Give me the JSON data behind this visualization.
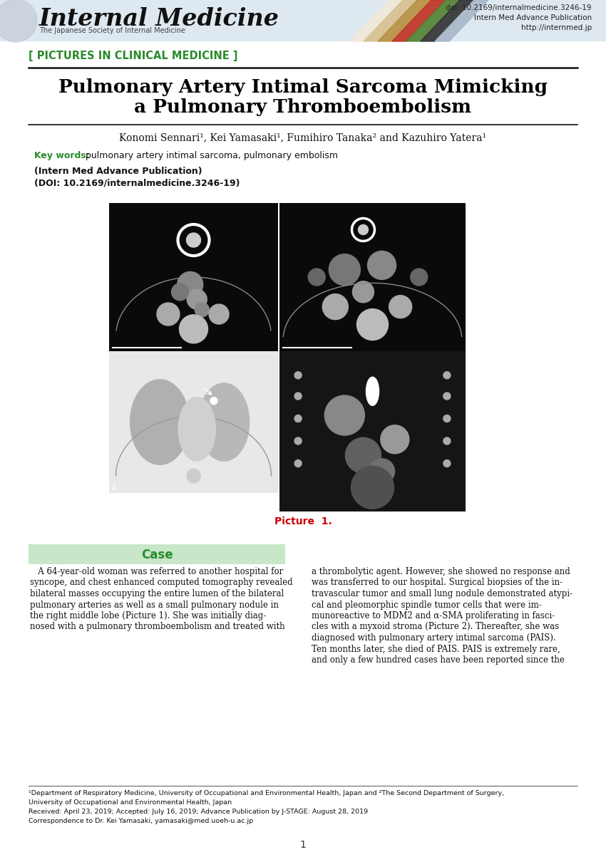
{
  "page_bg": "#ffffff",
  "header_bg": "#dde8f0",
  "stripe_colors": [
    "#f0ead8",
    "#d8c090",
    "#b89040",
    "#c03020",
    "#508030",
    "#303030",
    "#a8b8c8"
  ],
  "journal_title": "Internal Medicine",
  "journal_subtitle": "The Japanese Society of Internal Medicine",
  "doi_text": "doi: 10.2169/internalmedicine.3246-19",
  "doi_line2": "Intern Med Advance Publication",
  "doi_line3": "http://internmed.jp",
  "section_label": "[ PICTURES IN CLINICAL MEDICINE ]",
  "section_color": "#2a8a2a",
  "article_title_line1": "Pulmonary Artery Intimal Sarcoma Mimicking",
  "article_title_line2": "a Pulmonary Thromboembolism",
  "authors": "Konomi Sennari¹, Kei Yamasaki¹, Fumihiro Tanaka² and Kazuhiro Yatera¹",
  "keywords_label": "Key words:",
  "keywords_text": " pulmonary artery intimal sarcoma, pulmonary embolism",
  "keywords_color": "#2a8a2a",
  "pub_info_line1": "(Intern Med Advance Publication)",
  "pub_info_line2": "(DOI: 10.2169/internalmedicine.3246-19)",
  "picture_label": "Picture  1.",
  "picture_label_color": "#cc0000",
  "case_label": "Case",
  "case_label_color": "#2a8a2a",
  "case_bg_color": "#c8e6c8",
  "case_lines": [
    "   A 64-year-old woman was referred to another hospital for",
    "syncope, and chest enhanced computed tomography revealed",
    "bilateral masses occupying the entire lumen of the bilateral",
    "pulmonary arteries as well as a small pulmonary nodule in",
    "the right middle lobe (Picture 1). She was initially diag-",
    "nosed with a pulmonary thromboembolism and treated with"
  ],
  "right_lines": [
    "a thrombolytic agent. However, she showed no response and",
    "was transferred to our hospital. Surgical biopsies of the in-",
    "travascular tumor and small lung nodule demonstrated atypi-",
    "cal and pleomorphic spindle tumor cells that were im-",
    "munoreactive to MDM2 and α-SMA proliferating in fasci-",
    "cles with a myxoid stroma (Picture 2). Thereafter, she was",
    "diagnosed with pulmonary artery intimal sarcoma (PAIS).",
    "Ten months later, she died of PAIS. PAIS is extremely rare,",
    "and only a few hundred cases have been reported since the"
  ],
  "footnote_line1": "¹Department of Respiratory Medicine, University of Occupational and Environmental Health, Japan and ²The Second Department of Surgery,",
  "footnote_line2": "University of Occupational and Environmental Health, Japan",
  "footnote_line3": "Received: April 23, 2019; Accepted: July 16, 2019; Advance Publication by J-STAGE: August 28, 2019",
  "footnote_line4": "Correspondence to Dr. Kei Yamasaki, yamasaki@med.uoeh-u.ac.jp",
  "page_number": "1"
}
